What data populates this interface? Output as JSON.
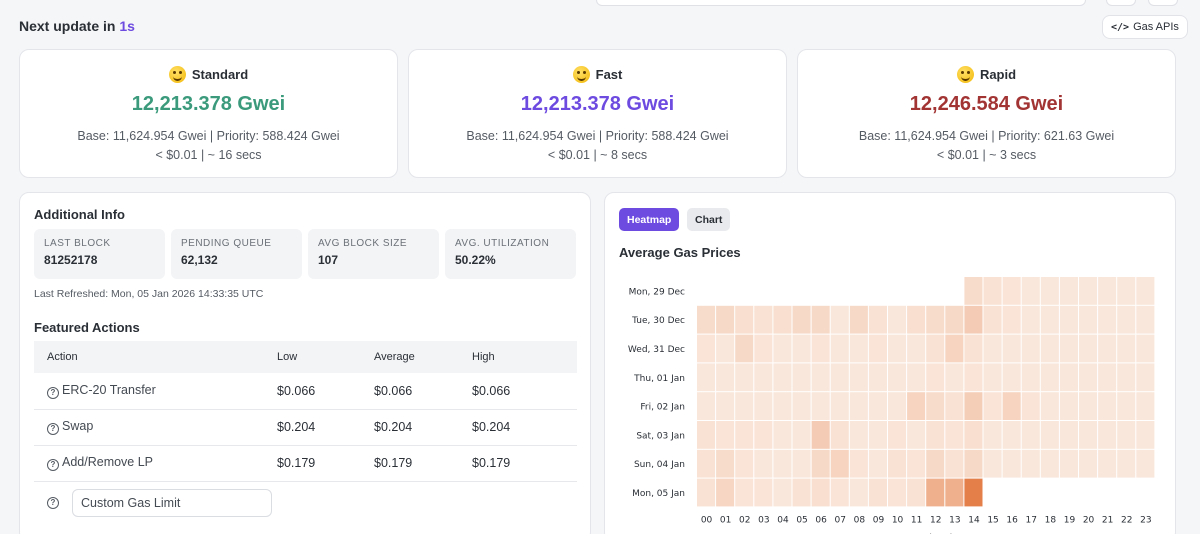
{
  "header": {
    "next_update_prefix": "Next update in",
    "next_update_value": "1s",
    "gas_apis_label": "Gas APIs",
    "gas_apis_icon": "code-icon"
  },
  "speeds": [
    {
      "name": "Standard",
      "value": "12,213.378 Gwei",
      "color": "#3a9a7b",
      "base": "Base: 11,624.954 Gwei | Priority: 588.424 Gwei",
      "cost": "< $0.01 | ~ 16 secs"
    },
    {
      "name": "Fast",
      "value": "12,213.378 Gwei",
      "color": "#6d4ae0",
      "base": "Base: 11,624.954 Gwei | Priority: 588.424 Gwei",
      "cost": "< $0.01 | ~ 8 secs"
    },
    {
      "name": "Rapid",
      "value": "12,246.584 Gwei",
      "color": "#a23434",
      "base": "Base: 11,624.954 Gwei | Priority: 621.63 Gwei",
      "cost": "< $0.01 | ~ 3 secs"
    }
  ],
  "info": {
    "title": "Additional Info",
    "stats": [
      {
        "label": "LAST BLOCK",
        "value": "81252178"
      },
      {
        "label": "PENDING QUEUE",
        "value": "62,132"
      },
      {
        "label": "AVG BLOCK SIZE",
        "value": "107"
      },
      {
        "label": "AVG. UTILIZATION",
        "value": "50.22%"
      }
    ],
    "refreshed": "Last Refreshed: Mon, 05 Jan 2026 14:33:35 UTC",
    "featured_title": "Featured Actions",
    "columns": [
      "Action",
      "Low",
      "Average",
      "High"
    ],
    "rows": [
      {
        "action": "ERC-20 Transfer",
        "low": "$0.066",
        "average": "$0.066",
        "high": "$0.066"
      },
      {
        "action": "Swap",
        "low": "$0.204",
        "average": "$0.204",
        "high": "$0.204"
      },
      {
        "action": "Add/Remove LP",
        "low": "$0.179",
        "average": "$0.179",
        "high": "$0.179"
      }
    ],
    "custom_placeholder": "Custom Gas Limit"
  },
  "chart": {
    "tabs": [
      "Heatmap",
      "Chart"
    ],
    "active_tab": "Heatmap",
    "title": "Average Gas Prices"
  },
  "chart_data": {
    "type": "heatmap",
    "title": "Average Gas Prices",
    "xlabel": "Hours (UTC)",
    "ylabel": "",
    "x": [
      "00",
      "01",
      "02",
      "03",
      "04",
      "05",
      "06",
      "07",
      "08",
      "09",
      "10",
      "11",
      "12",
      "13",
      "14",
      "15",
      "16",
      "17",
      "18",
      "19",
      "20",
      "21",
      "22",
      "23"
    ],
    "y": [
      "Mon, 29 Dec",
      "Tue, 30 Dec",
      "Wed, 31 Dec",
      "Thu, 01 Jan",
      "Fri, 02 Jan",
      "Sat, 03 Jan",
      "Sun, 04 Jan",
      "Mon, 05 Jan"
    ],
    "values": [
      [
        null,
        null,
        null,
        null,
        null,
        null,
        null,
        null,
        null,
        null,
        null,
        null,
        null,
        null,
        0.18,
        0.14,
        0.12,
        0.1,
        0.1,
        0.1,
        0.1,
        0.1,
        0.1,
        0.1
      ],
      [
        0.18,
        0.2,
        0.16,
        0.14,
        0.16,
        0.2,
        0.2,
        0.1,
        0.2,
        0.14,
        0.1,
        0.16,
        0.18,
        0.2,
        0.3,
        0.14,
        0.12,
        0.1,
        0.1,
        0.1,
        0.1,
        0.1,
        0.1,
        0.1
      ],
      [
        0.12,
        0.1,
        0.2,
        0.12,
        0.1,
        0.1,
        0.12,
        0.1,
        0.1,
        0.12,
        0.1,
        0.1,
        0.14,
        0.24,
        0.14,
        0.1,
        0.1,
        0.1,
        0.1,
        0.1,
        0.1,
        0.1,
        0.1,
        0.1
      ],
      [
        0.1,
        0.1,
        0.1,
        0.1,
        0.1,
        0.1,
        0.1,
        0.1,
        0.1,
        0.1,
        0.1,
        0.1,
        0.12,
        0.1,
        0.12,
        0.1,
        0.1,
        0.1,
        0.1,
        0.1,
        0.1,
        0.1,
        0.1,
        0.1
      ],
      [
        0.1,
        0.1,
        0.1,
        0.1,
        0.1,
        0.1,
        0.1,
        0.1,
        0.1,
        0.1,
        0.1,
        0.24,
        0.18,
        0.14,
        0.28,
        0.12,
        0.24,
        0.12,
        0.1,
        0.1,
        0.1,
        0.1,
        0.1,
        0.1
      ],
      [
        0.14,
        0.12,
        0.12,
        0.12,
        0.1,
        0.1,
        0.3,
        0.14,
        0.1,
        0.1,
        0.12,
        0.1,
        0.14,
        0.12,
        0.16,
        0.1,
        0.1,
        0.1,
        0.1,
        0.1,
        0.1,
        0.1,
        0.1,
        0.1
      ],
      [
        0.14,
        0.18,
        0.12,
        0.1,
        0.1,
        0.1,
        0.2,
        0.24,
        0.12,
        0.1,
        0.14,
        0.12,
        0.2,
        0.14,
        0.2,
        0.1,
        0.1,
        0.1,
        0.1,
        0.1,
        0.1,
        0.1,
        0.1,
        0.1
      ],
      [
        0.14,
        0.22,
        0.12,
        0.12,
        0.1,
        0.14,
        0.16,
        0.12,
        0.1,
        0.14,
        0.12,
        0.14,
        0.5,
        0.5,
        0.85,
        null,
        null,
        null,
        null,
        null,
        null,
        null,
        null,
        null
      ]
    ],
    "colorscale": [
      "#fdf5ee",
      "#e06a2c"
    ]
  }
}
